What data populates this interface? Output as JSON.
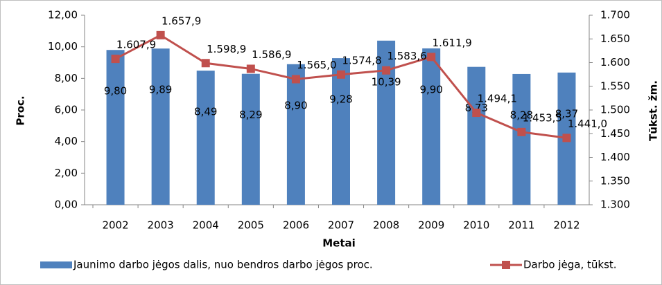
{
  "chart_data": {
    "type": "bar-line",
    "x_label": "Metai",
    "y_label": "Proc.",
    "y2_label": "Tūkst. žm.",
    "categories": [
      "2002",
      "2003",
      "2004",
      "2005",
      "2006",
      "2007",
      "2008",
      "2009",
      "2010",
      "2011",
      "2012"
    ],
    "series": [
      {
        "name": "Jaunimo darbo jėgos dalis, nuo bendros darbo jėgos proc.",
        "type": "bar",
        "color": "#4f81bd",
        "values": [
          9.8,
          9.89,
          8.49,
          8.29,
          8.9,
          9.28,
          10.39,
          9.9,
          8.73,
          8.28,
          8.37
        ],
        "value_labels": [
          "9,80",
          "9,89",
          "8,49",
          "8,29",
          "8,90",
          "9,28",
          "10,39",
          "9,90",
          "8,73",
          "8,28",
          "8,37"
        ]
      },
      {
        "name": "Darbo jėga, tūkst.",
        "type": "line",
        "axis": "y2",
        "color": "#c0504d",
        "values": [
          1607.9,
          1657.9,
          1598.9,
          1586.9,
          1565.0,
          1574.8,
          1583.6,
          1611.9,
          1494.1,
          1453.5,
          1441.0
        ],
        "value_labels": [
          "1.607,9",
          "1.657,9",
          "1.598,9",
          "1.586,9",
          "1.565,0",
          "1.574,8",
          "1.583,6",
          "1.611,9",
          "1.494,1",
          "1.453,5",
          "1.441,0"
        ]
      }
    ],
    "ylim": [
      0,
      12
    ],
    "yticks": [
      {
        "value": 0,
        "label": "0,00"
      },
      {
        "value": 2,
        "label": "2,00"
      },
      {
        "value": 4,
        "label": "4,00"
      },
      {
        "value": 6,
        "label": "6,00"
      },
      {
        "value": 8,
        "label": "8,00"
      },
      {
        "value": 10,
        "label": "10,00"
      },
      {
        "value": 12,
        "label": "12,00"
      }
    ],
    "y2lim": [
      1300,
      1700
    ],
    "y2ticks": [
      {
        "value": 1300,
        "label": "1.300"
      },
      {
        "value": 1350,
        "label": "1.350"
      },
      {
        "value": 1400,
        "label": "1.400"
      },
      {
        "value": 1450,
        "label": "1.450"
      },
      {
        "value": 1500,
        "label": "1.500"
      },
      {
        "value": 1550,
        "label": "1.550"
      },
      {
        "value": 1600,
        "label": "1.600"
      },
      {
        "value": 1650,
        "label": "1.650"
      },
      {
        "value": 1700,
        "label": "1.700"
      }
    ],
    "legend": "bottom"
  }
}
